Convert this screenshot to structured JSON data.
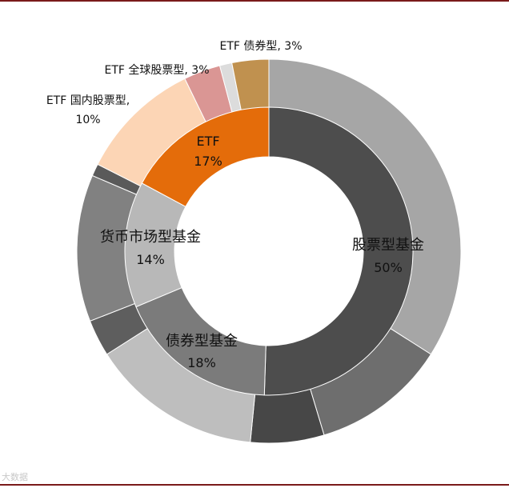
{
  "chart_data": {
    "type": "pie",
    "inner_ring": [
      {
        "label": "股票型基金",
        "value": 50,
        "value_label": "50%",
        "color": "#4d4d4d"
      },
      {
        "label": "债券型基金",
        "value": 18,
        "value_label": "18%",
        "color": "#7b7b7b"
      },
      {
        "label": "货币市场型基金",
        "value": 14,
        "value_label": "14%",
        "color": "#b8b8b8"
      },
      {
        "label": "ETF",
        "value": 17,
        "value_label": "17%",
        "color": "#e46c0a"
      }
    ],
    "outer_ring": [
      {
        "label": "",
        "value": 33,
        "color": "#a6a6a6"
      },
      {
        "label": "",
        "value": 11,
        "color": "#6e6e6e"
      },
      {
        "label": "",
        "value": 6,
        "color": "#474747"
      },
      {
        "label": "",
        "value": 14,
        "color": "#bebebe"
      },
      {
        "label": "",
        "value": 3,
        "color": "#5e5e5e"
      },
      {
        "label": "",
        "value": 12,
        "color": "#818181"
      },
      {
        "label": "",
        "value": 1,
        "color": "#5a5a5a"
      },
      {
        "label": "ETF 国内股票型,",
        "value": 10,
        "value_label": "10%",
        "color": "#fcd5b5"
      },
      {
        "label": "ETF 全球股票型,",
        "value": 3,
        "value_label": "3%",
        "color": "#da9694"
      },
      {
        "label": "",
        "value": 1,
        "color": "#dcdcdc"
      },
      {
        "label": "ETF 债券型,",
        "value": 3,
        "value_label": "3%",
        "color": "#c0914f"
      }
    ]
  },
  "labels": {
    "equity_name": "股票型基金",
    "equity_pct": "50%",
    "bond_name": "债券型基金",
    "bond_pct": "18%",
    "money_name": "货币市场型基金",
    "money_pct": "14%",
    "etf_name": "ETF",
    "etf_pct": "17%",
    "etf_bond": "ETF 债券型, 3%",
    "etf_global": "ETF 全球股票型, 3%",
    "etf_domestic_line1": "ETF 国内股票型,",
    "etf_domestic_line2": "10%"
  },
  "watermark": "大数据"
}
